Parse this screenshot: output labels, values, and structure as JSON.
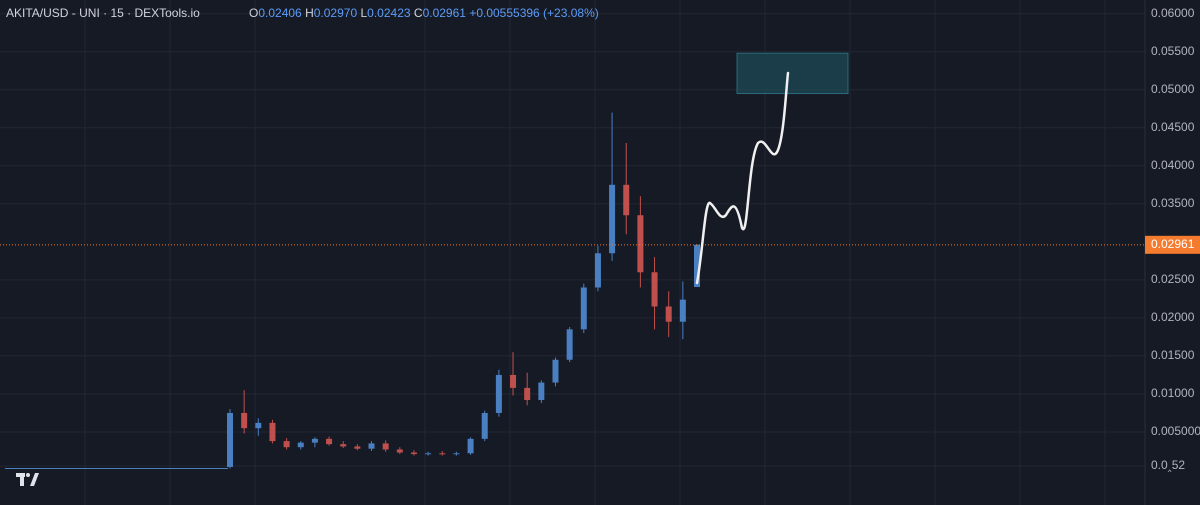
{
  "chart_data": {
    "type": "candlestick",
    "title": "AKITA/USD - UNI · 15 · DEXTools.io",
    "ohlc_legend": {
      "open_label": "O",
      "open": "0.02406",
      "high_label": "H",
      "high": "0.02970",
      "low_label": "L",
      "low": "0.02423",
      "close_label": "C",
      "close": "0.02961",
      "change": "+0.00555396 (+23.08%)"
    },
    "open": [
      0.0004,
      0.0075,
      0.0055,
      0.0062,
      0.0038,
      0.003,
      0.0036,
      0.0041,
      0.0034,
      0.0031,
      0.0028,
      0.0035,
      0.0027,
      0.0023,
      0.0021,
      0.0022,
      0.0021,
      0.0022,
      0.0041,
      0.0075,
      0.0125,
      0.0108,
      0.0092,
      0.0115,
      0.0145,
      0.0185,
      0.024,
      0.0285,
      0.0375,
      0.0335,
      0.026,
      0.0215,
      0.0195,
      0.02406
    ],
    "high": [
      0.008,
      0.0105,
      0.0068,
      0.0066,
      0.0042,
      0.0038,
      0.0043,
      0.0044,
      0.0038,
      0.0034,
      0.0038,
      0.0039,
      0.003,
      0.0026,
      0.0024,
      0.0025,
      0.0024,
      0.0043,
      0.0078,
      0.0132,
      0.0155,
      0.0128,
      0.0118,
      0.0148,
      0.0188,
      0.0245,
      0.0295,
      0.047,
      0.043,
      0.036,
      0.028,
      0.0235,
      0.0248,
      0.0297
    ],
    "low": [
      0.0002,
      0.0048,
      0.0045,
      0.0035,
      0.0027,
      0.0027,
      0.003,
      0.0032,
      0.0029,
      0.0026,
      0.0025,
      0.0024,
      0.0021,
      0.0019,
      0.0019,
      0.0019,
      0.0019,
      0.002,
      0.0038,
      0.007,
      0.0098,
      0.0085,
      0.0088,
      0.011,
      0.0142,
      0.018,
      0.0235,
      0.0275,
      0.031,
      0.024,
      0.0185,
      0.0175,
      0.0172,
      0.02423
    ],
    "close": [
      0.0075,
      0.0055,
      0.0062,
      0.0038,
      0.003,
      0.0036,
      0.0041,
      0.0034,
      0.0031,
      0.0028,
      0.0035,
      0.0027,
      0.0023,
      0.0021,
      0.0022,
      0.0021,
      0.0022,
      0.0041,
      0.0075,
      0.0125,
      0.0108,
      0.0092,
      0.0115,
      0.0145,
      0.0185,
      0.024,
      0.0285,
      0.0375,
      0.0335,
      0.026,
      0.0215,
      0.0195,
      0.0224,
      0.02961
    ],
    "pre_listing_value": 0.0002,
    "up_color": "#4a7fc1",
    "down_color": "#c0504d",
    "price_line_color": "#f57c2e",
    "ylim": [
      -0.0046,
      0.0618
    ],
    "yticks": [
      {
        "value": 0.06,
        "label": "0.06000"
      },
      {
        "value": 0.055,
        "label": "0.05500"
      },
      {
        "value": 0.05,
        "label": "0.05000"
      },
      {
        "value": 0.045,
        "label": "0.04500"
      },
      {
        "value": 0.04,
        "label": "0.04000"
      },
      {
        "value": 0.035,
        "label": "0.03500"
      },
      {
        "value": 0.025,
        "label": "0.02500"
      },
      {
        "value": 0.02,
        "label": "0.02000"
      },
      {
        "value": 0.015,
        "label": "0.01500"
      },
      {
        "value": 0.01,
        "label": "0.01000"
      },
      {
        "value": 0.005,
        "label": "0.005000"
      },
      {
        "value": 0.00052,
        "label": "0.0‸52"
      }
    ],
    "target_zone": [
      0.0495,
      0.0548
    ],
    "grid": true
  }
}
